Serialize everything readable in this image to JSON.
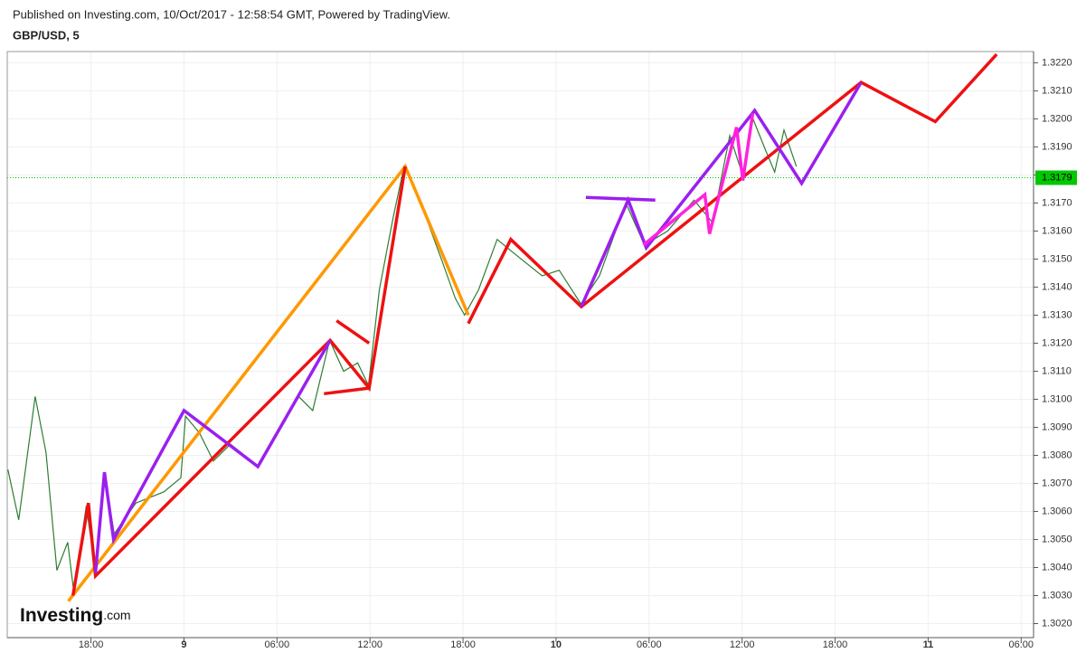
{
  "chart_data": {
    "type": "line",
    "header": "Published on Investing.com, 10/Oct/2017 - 12:58:54 GMT, Powered by TradingView.",
    "title": "GBP/USD, 5",
    "logo": {
      "name": "Investing",
      "suffix": ".com"
    },
    "xlim": [
      12.6,
      78.8
    ],
    "ylim": [
      1.3015,
      1.3224
    ],
    "grid": true,
    "xticks": [
      {
        "value": 18,
        "label": "18:00"
      },
      {
        "value": 24,
        "label": "9"
      },
      {
        "value": 30,
        "label": "06:00"
      },
      {
        "value": 36,
        "label": "12:00"
      },
      {
        "value": 42,
        "label": "18:00"
      },
      {
        "value": 48,
        "label": "10"
      },
      {
        "value": 54,
        "label": "06:00"
      },
      {
        "value": 60,
        "label": "12:00"
      },
      {
        "value": 66,
        "label": "18:00"
      },
      {
        "value": 72,
        "label": "11"
      },
      {
        "value": 78,
        "label": "06:00"
      }
    ],
    "yticks": [
      {
        "value": 1.302,
        "label": "1.3020"
      },
      {
        "value": 1.303,
        "label": "1.3030"
      },
      {
        "value": 1.304,
        "label": "1.3040"
      },
      {
        "value": 1.305,
        "label": "1.3050"
      },
      {
        "value": 1.306,
        "label": "1.3060"
      },
      {
        "value": 1.307,
        "label": "1.3070"
      },
      {
        "value": 1.308,
        "label": "1.3080"
      },
      {
        "value": 1.309,
        "label": "1.3090"
      },
      {
        "value": 1.31,
        "label": "1.3100"
      },
      {
        "value": 1.311,
        "label": "1.3110"
      },
      {
        "value": 1.312,
        "label": "1.3120"
      },
      {
        "value": 1.313,
        "label": "1.3130"
      },
      {
        "value": 1.314,
        "label": "1.3140"
      },
      {
        "value": 1.315,
        "label": "1.3150"
      },
      {
        "value": 1.316,
        "label": "1.3160"
      },
      {
        "value": 1.317,
        "label": "1.3170"
      },
      {
        "value": 1.318,
        "label": "1.3180"
      },
      {
        "value": 1.319,
        "label": "1.3190"
      },
      {
        "value": 1.32,
        "label": "1.3200"
      },
      {
        "value": 1.321,
        "label": "1.3210"
      },
      {
        "value": 1.322,
        "label": "1.3220"
      }
    ],
    "last_price": 1.3179,
    "last_color": "#00c800",
    "series": [
      {
        "color": "#2e7d32",
        "x": [
          12.64,
          13.34,
          14.4,
          15.1,
          15.8,
          16.5,
          16.9,
          17.7,
          18.3,
          18.9,
          19.5,
          20.9,
          22.7,
          23.8,
          24.1,
          25.0,
          25.9,
          27.0,
          28.8,
          30.0,
          31.4,
          32.3,
          33.4,
          34.3,
          35.2,
          35.9,
          36.6,
          37.5,
          38.2,
          39.2,
          40.6,
          41.5,
          42.1,
          43.0,
          44.2,
          45.3,
          47.1,
          48.2,
          49.6,
          50.8,
          52.5,
          53.7,
          55.2,
          56.9,
          58.1,
          59.2,
          60.1,
          60.7,
          61.5,
          62.1,
          62.7,
          63.5
        ],
        "values": [
          1.3075,
          1.3057,
          1.3101,
          1.3081,
          1.3039,
          1.3049,
          1.3031,
          1.3062,
          1.3038,
          1.3073,
          1.3052,
          1.3063,
          1.3067,
          1.3072,
          1.3094,
          1.3088,
          1.3078,
          1.3084,
          1.3076,
          1.3088,
          1.3101,
          1.3096,
          1.3121,
          1.311,
          1.3113,
          1.3105,
          1.3139,
          1.3165,
          1.3183,
          1.3171,
          1.315,
          1.3136,
          1.313,
          1.3139,
          1.3157,
          1.3152,
          1.3144,
          1.3146,
          1.3134,
          1.3144,
          1.317,
          1.3155,
          1.316,
          1.3171,
          1.3163,
          1.3194,
          1.3179,
          1.32,
          1.3189,
          1.3181,
          1.3196,
          1.3183
        ]
      },
      {
        "color": "#ff9800",
        "x": [
          16.54,
          38.27,
          42.34
        ],
        "values": [
          1.3028,
          1.3183,
          1.313
        ]
      },
      {
        "color": "#ee1111",
        "x": [
          16.84,
          17.83,
          18.29,
          33.43,
          35.94,
          38.27
        ],
        "values": [
          1.303,
          1.3063,
          1.3037,
          1.3121,
          1.3104,
          1.3183
        ]
      },
      {
        "color": "#ee1111",
        "x": [
          33.84,
          35.94
        ],
        "values": [
          1.3128,
          1.312
        ]
      },
      {
        "color": "#ee1111",
        "x": [
          33.03,
          35.94
        ],
        "values": [
          1.3102,
          1.3104
        ]
      },
      {
        "color": "#ee1111",
        "x": [
          42.34,
          45.08,
          49.63,
          67.68,
          72.46,
          76.42
        ],
        "values": [
          1.3127,
          1.3157,
          1.3133,
          1.3213,
          1.3199,
          1.3223
        ]
      },
      {
        "color": "#9b1ff0",
        "x": [
          18.29,
          18.87,
          19.46,
          24.0,
          28.77,
          33.43
        ],
        "values": [
          1.3038,
          1.3074,
          1.305,
          1.3096,
          1.3076,
          1.3121
        ]
      },
      {
        "color": "#9b1ff0",
        "x": [
          49.63,
          52.65,
          53.82,
          60.81,
          63.84,
          67.68
        ],
        "values": [
          1.3133,
          1.3171,
          1.3154,
          1.3203,
          1.3177,
          1.3213
        ]
      },
      {
        "color": "#9b1ff0",
        "x": [
          49.92,
          54.4
        ],
        "values": [
          1.3172,
          1.3171
        ]
      },
      {
        "color": "#ff22dd",
        "x": [
          53.64,
          57.6,
          57.9,
          59.64,
          60.05,
          60.69
        ],
        "values": [
          1.3155,
          1.3173,
          1.3159,
          1.3197,
          1.3178,
          1.3202
        ]
      }
    ]
  }
}
